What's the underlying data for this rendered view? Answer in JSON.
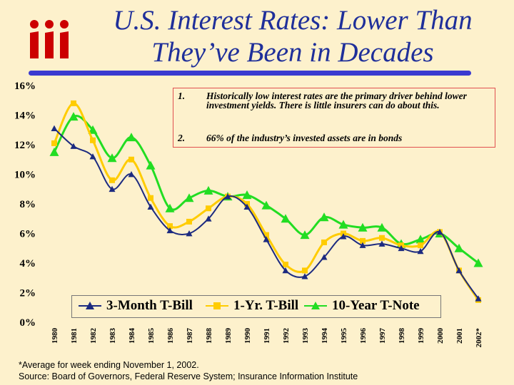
{
  "title": "U.S. Interest Rates: Lower Than They've Been in Decades",
  "title_line1": "U.S. Interest Rates: Lower Than",
  "title_line2": "They’ve Been in Decades",
  "logo_text": "iii",
  "notes": [
    {
      "num": "1.",
      "text": "Historically low interest rates are the primary driver behind lower investment yields.  There is little insurers can do about this."
    },
    {
      "num": "2.",
      "text": "66% of the industry’s invested assets are in bonds"
    }
  ],
  "footnote": "*Average for week ending November 1, 2002.",
  "source": "Source:  Board of Governors, Federal Reserve System; Insurance Information Institute",
  "colors": {
    "series1": "#1c2a80",
    "series2": "#ffcc00",
    "series3": "#22dd22",
    "title": "#1f2f9a",
    "logo": "#cc0000"
  },
  "chart_data": {
    "type": "line",
    "title": "",
    "xlabel": "",
    "ylabel": "",
    "ylim": [
      0,
      16
    ],
    "y_ticks": [
      "0%",
      "2%",
      "4%",
      "6%",
      "8%",
      "10%",
      "12%",
      "14%",
      "16%"
    ],
    "y_tick_values": [
      0,
      2,
      4,
      6,
      8,
      10,
      12,
      14,
      16
    ],
    "categories": [
      "1980",
      "1981",
      "1982",
      "1983",
      "1984",
      "1985",
      "1986",
      "1987",
      "1988",
      "1989",
      "1990",
      "1991",
      "1992",
      "1993",
      "1994",
      "1995",
      "1996",
      "1997",
      "1998",
      "1999",
      "2000",
      "2001",
      "2002*"
    ],
    "series": [
      {
        "name": "3-Month T-Bill",
        "marker": "triangle",
        "values": [
          13.1,
          11.9,
          11.2,
          9.0,
          10.0,
          7.8,
          6.2,
          6.0,
          7.0,
          8.5,
          7.8,
          5.6,
          3.5,
          3.1,
          4.4,
          5.8,
          5.2,
          5.3,
          5.0,
          4.8,
          6.1,
          3.5,
          1.6
        ]
      },
      {
        "name": "1-Yr. T-Bill",
        "marker": "square",
        "values": [
          12.1,
          14.8,
          12.3,
          9.6,
          11.0,
          8.4,
          6.5,
          6.8,
          7.7,
          8.5,
          8.0,
          5.9,
          3.9,
          3.5,
          5.4,
          6.0,
          5.5,
          5.7,
          5.2,
          5.2,
          6.1,
          3.5,
          1.5
        ]
      },
      {
        "name": "10-Year T-Note",
        "marker": "triangle",
        "values": [
          11.5,
          13.9,
          13.0,
          11.1,
          12.5,
          10.6,
          7.7,
          8.4,
          8.9,
          8.5,
          8.6,
          7.9,
          7.0,
          5.9,
          7.1,
          6.6,
          6.4,
          6.4,
          5.3,
          5.6,
          6.0,
          5.0,
          4.0
        ]
      }
    ],
    "legend": "bottom"
  }
}
